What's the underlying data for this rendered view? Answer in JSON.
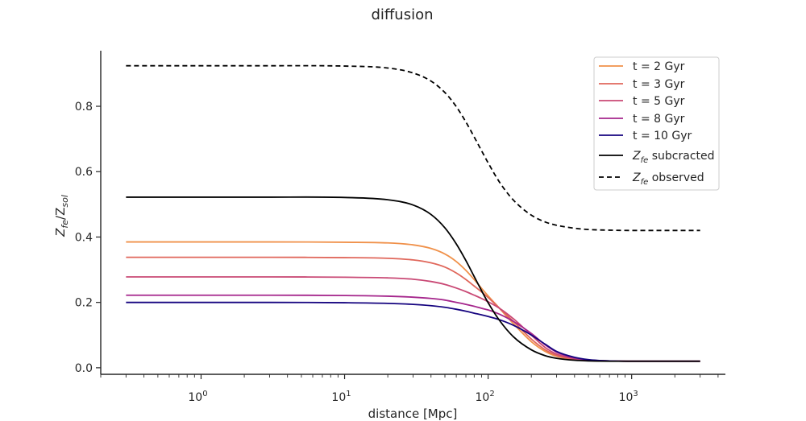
{
  "chart_data": {
    "type": "line",
    "title": "diffusion",
    "xlabel": "distance [Mpc]",
    "ylabel": "Z_fe/Z_sol",
    "xscale": "log",
    "xlim": [
      0.2,
      4500
    ],
    "ylim": [
      -0.02,
      0.97
    ],
    "grid": false,
    "legend_position": "top-right",
    "x_major_ticks": [
      {
        "value": 1,
        "base": "10",
        "exp": "0"
      },
      {
        "value": 10,
        "base": "10",
        "exp": "1"
      },
      {
        "value": 100,
        "base": "10",
        "exp": "2"
      },
      {
        "value": 1000,
        "base": "10",
        "exp": "3"
      }
    ],
    "y_ticks": [
      {
        "value": 0.0,
        "label": "0.0"
      },
      {
        "value": 0.2,
        "label": "0.2"
      },
      {
        "value": 0.4,
        "label": "0.4"
      },
      {
        "value": 0.6,
        "label": "0.6"
      },
      {
        "value": 0.8,
        "label": "0.8"
      }
    ],
    "x": [
      0.3,
      1,
      3,
      10,
      20,
      30,
      40,
      50,
      60,
      70,
      80,
      90,
      100,
      120,
      150,
      200,
      250,
      300,
      400,
      500,
      700,
      1000,
      3000
    ],
    "series": [
      {
        "name": "t = 2 Gyr",
        "color": "#f0914a",
        "dash": "solid",
        "values": [
          0.385,
          0.385,
          0.385,
          0.384,
          0.382,
          0.376,
          0.365,
          0.348,
          0.325,
          0.298,
          0.27,
          0.243,
          0.22,
          0.182,
          0.135,
          0.08,
          0.05,
          0.035,
          0.025,
          0.022,
          0.021,
          0.02,
          0.02
        ]
      },
      {
        "name": "t = 3 Gyr",
        "color": "#e0675b",
        "dash": "solid",
        "values": [
          0.338,
          0.338,
          0.338,
          0.337,
          0.335,
          0.33,
          0.321,
          0.308,
          0.29,
          0.27,
          0.25,
          0.232,
          0.215,
          0.182,
          0.142,
          0.088,
          0.055,
          0.038,
          0.026,
          0.022,
          0.021,
          0.02,
          0.02
        ]
      },
      {
        "name": "t = 5 Gyr",
        "color": "#c94975",
        "dash": "solid",
        "values": [
          0.278,
          0.278,
          0.278,
          0.277,
          0.275,
          0.271,
          0.264,
          0.255,
          0.244,
          0.233,
          0.222,
          0.212,
          0.202,
          0.182,
          0.15,
          0.1,
          0.062,
          0.042,
          0.028,
          0.023,
          0.021,
          0.02,
          0.02
        ]
      },
      {
        "name": "t = 8 Gyr",
        "color": "#a5268c",
        "dash": "solid",
        "values": [
          0.222,
          0.222,
          0.222,
          0.221,
          0.219,
          0.216,
          0.212,
          0.207,
          0.2,
          0.194,
          0.188,
          0.182,
          0.177,
          0.164,
          0.142,
          0.105,
          0.07,
          0.048,
          0.03,
          0.024,
          0.021,
          0.02,
          0.02
        ]
      },
      {
        "name": "t = 10 Gyr",
        "color": "#15037f",
        "dash": "solid",
        "values": [
          0.2,
          0.2,
          0.2,
          0.199,
          0.197,
          0.194,
          0.19,
          0.185,
          0.179,
          0.173,
          0.167,
          0.162,
          0.157,
          0.147,
          0.13,
          0.1,
          0.072,
          0.05,
          0.032,
          0.025,
          0.021,
          0.02,
          0.02
        ]
      },
      {
        "name": "Z_fe subcracted",
        "color": "#000000",
        "dash": "solid",
        "values": [
          0.522,
          0.522,
          0.522,
          0.521,
          0.514,
          0.498,
          0.469,
          0.428,
          0.379,
          0.328,
          0.279,
          0.236,
          0.199,
          0.145,
          0.095,
          0.055,
          0.037,
          0.029,
          0.023,
          0.021,
          0.02,
          0.02,
          0.02
        ]
      },
      {
        "name": "Z_fe observed",
        "color": "#000000",
        "dash": "dashed",
        "values": [
          0.924,
          0.924,
          0.924,
          0.923,
          0.917,
          0.902,
          0.877,
          0.842,
          0.799,
          0.752,
          0.706,
          0.664,
          0.627,
          0.568,
          0.513,
          0.467,
          0.446,
          0.436,
          0.427,
          0.423,
          0.421,
          0.42,
          0.42
        ]
      }
    ]
  }
}
